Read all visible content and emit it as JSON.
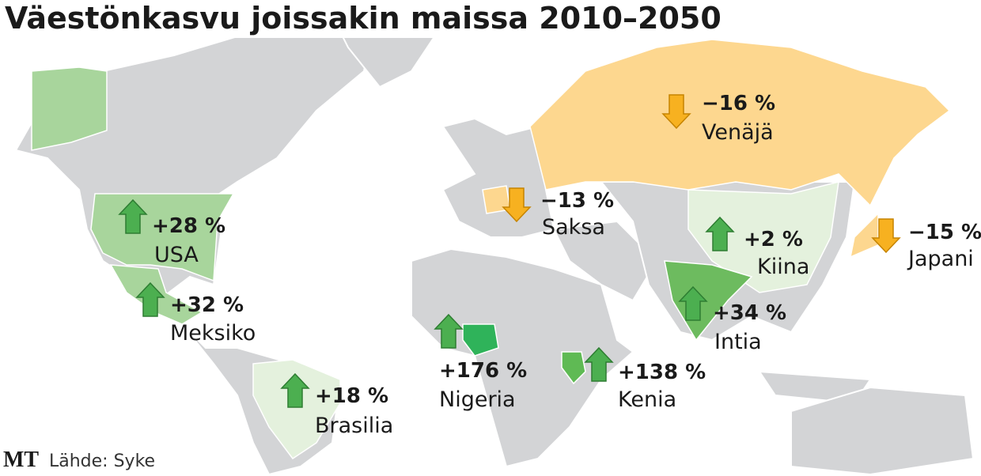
{
  "title": "Väestönkasvu joissakin maissa 2010–2050",
  "countries": [
    {
      "name": "USA",
      "change": "+28 %"
    },
    {
      "name": "Meksiko",
      "change": "+32 %"
    },
    {
      "name": "Brasilia",
      "change": "+18 %"
    },
    {
      "name": "Nigeria",
      "change": "+176 %"
    },
    {
      "name": "Kenia",
      "change": "+138 %"
    },
    {
      "name": "Intia",
      "change": "+34 %"
    },
    {
      "name": "Kiina",
      "change": "+2 %"
    },
    {
      "name": "Saksa",
      "change": "−13 %"
    },
    {
      "name": "Venäjä",
      "change": "−16 %"
    },
    {
      "name": "Japani",
      "change": "−15 %"
    }
  ],
  "source": {
    "logo": "MT",
    "text": "Lähde: Syke"
  }
}
